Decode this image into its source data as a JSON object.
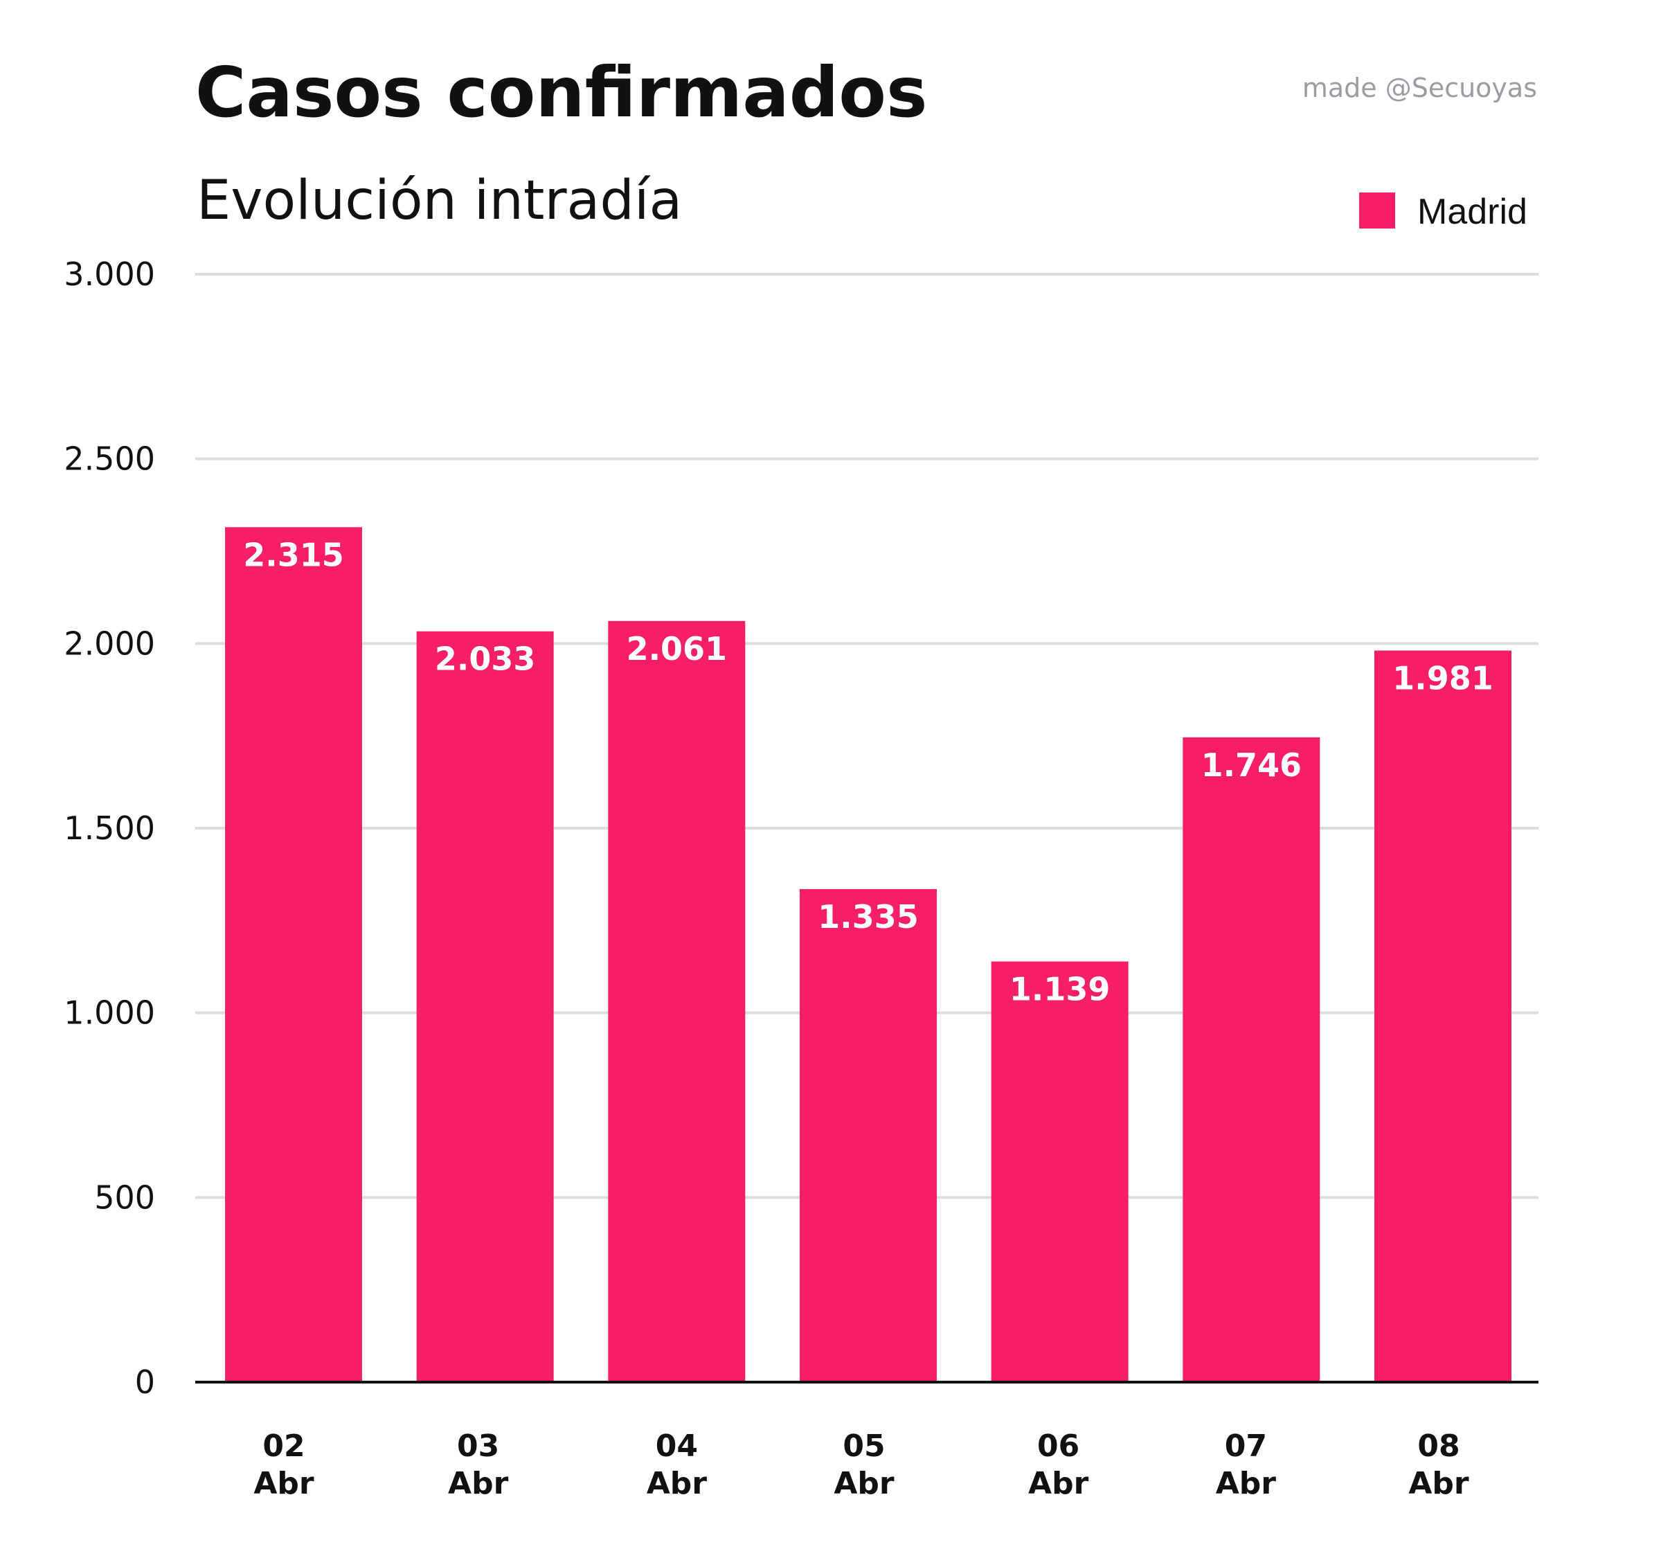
{
  "chart_data": {
    "type": "bar",
    "title": "Casos confirmados",
    "subtitle": "Evolución intradía",
    "credit": "made @Secuoyas",
    "categories": [
      [
        "02",
        "Abr"
      ],
      [
        "03",
        "Abr"
      ],
      [
        "04",
        "Abr"
      ],
      [
        "05",
        "Abr"
      ],
      [
        "06",
        "Abr"
      ],
      [
        "07",
        "Abr"
      ],
      [
        "08",
        "Abr"
      ]
    ],
    "series": [
      {
        "name": "Madrid",
        "color": "#f61e69",
        "values": [
          2315,
          2033,
          2061,
          1335,
          1139,
          1746,
          1981
        ],
        "value_labels": [
          "2.315",
          "2.033",
          "2.061",
          "1.335",
          "1.139",
          "1.746",
          "1.981"
        ]
      }
    ],
    "yticks": [
      0,
      500,
      1000,
      1500,
      2000,
      2500,
      3000
    ],
    "ytick_labels": [
      "0",
      "500",
      "1.000",
      "1.500",
      "2.000",
      "2.500",
      "3.000"
    ],
    "ylim": [
      0,
      3000
    ],
    "grid": true,
    "legend": "top-right"
  }
}
